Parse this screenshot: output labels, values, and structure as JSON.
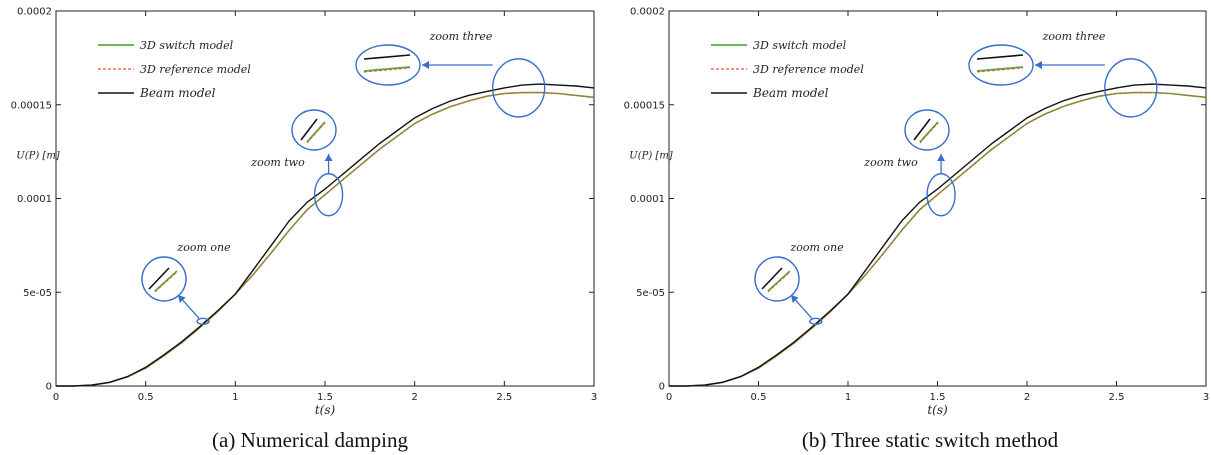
{
  "captions": [
    "(a) Numerical damping",
    "(b) Three static switch method"
  ],
  "chart_data": [
    {
      "type": "line",
      "title": "",
      "xlabel": "t(s)",
      "ylabel": "U(P) [m]",
      "xlim": [
        0,
        3
      ],
      "ylim": [
        0,
        0.0002
      ],
      "xticks": [
        "0",
        "0.5",
        "1",
        "1.5",
        "2",
        "2.5",
        "3"
      ],
      "yticks": [
        "0",
        "5e-05",
        "0.0001",
        "0.00015",
        "0.0002"
      ],
      "grid": false,
      "legend_position": "top-left",
      "x": [
        0,
        0.1,
        0.2,
        0.3,
        0.4,
        0.5,
        0.6,
        0.7,
        0.8,
        0.9,
        1.0,
        1.1,
        1.2,
        1.3,
        1.4,
        1.5,
        1.6,
        1.7,
        1.8,
        1.9,
        2.0,
        2.1,
        2.2,
        2.3,
        2.4,
        2.5,
        2.6,
        2.7,
        2.8,
        2.9,
        3.0
      ],
      "series": [
        {
          "name": "3D switch model",
          "color": "#5aab3c",
          "values": [
            0,
            0,
            5e-07,
            2e-06,
            5e-06,
            9.5e-06,
            1.6e-05,
            2.3e-05,
            3.1e-05,
            3.95e-05,
            4.9e-05,
            5.95e-05,
            7.1e-05,
            8.3e-05,
            9.4e-05,
            0.000102,
            0.00011,
            0.000118,
            0.000126,
            0.000133,
            0.00014,
            0.000145,
            0.000149,
            0.000152,
            0.0001545,
            0.000156,
            0.0001565,
            0.0001565,
            0.000156,
            0.000155,
            0.000154
          ]
        },
        {
          "name": "3D reference model",
          "color": "#e8503a",
          "values": [
            0,
            0,
            5e-07,
            2e-06,
            5e-06,
            9.5e-06,
            1.6e-05,
            2.3e-05,
            3.1e-05,
            3.95e-05,
            4.9e-05,
            5.95e-05,
            7.1e-05,
            8.3e-05,
            9.4e-05,
            0.000102,
            0.00011,
            0.000118,
            0.000126,
            0.000133,
            0.00014,
            0.000145,
            0.000149,
            0.000152,
            0.0001545,
            0.000156,
            0.0001565,
            0.0001565,
            0.000156,
            0.000155,
            0.000154
          ]
        },
        {
          "name": "Beam model",
          "color": "#111111",
          "values": [
            0,
            0,
            5e-07,
            2e-06,
            5e-06,
            1e-05,
            1.65e-05,
            2.35e-05,
            3.15e-05,
            4e-05,
            4.9e-05,
            6.2e-05,
            7.5e-05,
            8.8e-05,
            9.8e-05,
            0.000105,
            0.000113,
            0.000121,
            0.000129,
            0.000136,
            0.000143,
            0.000148,
            0.000152,
            0.000155,
            0.000157,
            0.000159,
            0.0001605,
            0.000161,
            0.0001605,
            0.00016,
            0.000159
          ]
        }
      ],
      "annotations": [
        "zoom one",
        "zoom two",
        "zoom three"
      ]
    },
    {
      "type": "line",
      "title": "",
      "xlabel": "t(s)",
      "ylabel": "U(P) [m]",
      "xlim": [
        0,
        3
      ],
      "ylim": [
        0,
        0.0002
      ],
      "xticks": [
        "0",
        "0.5",
        "1",
        "1.5",
        "2",
        "2.5",
        "3"
      ],
      "yticks": [
        "0",
        "5e-05",
        "0.0001",
        "0.00015",
        "0.0002"
      ],
      "grid": false,
      "legend_position": "top-left",
      "x": [
        0,
        0.1,
        0.2,
        0.3,
        0.4,
        0.5,
        0.6,
        0.7,
        0.8,
        0.9,
        1.0,
        1.1,
        1.2,
        1.3,
        1.4,
        1.5,
        1.6,
        1.7,
        1.8,
        1.9,
        2.0,
        2.1,
        2.2,
        2.3,
        2.4,
        2.5,
        2.6,
        2.7,
        2.8,
        2.9,
        3.0
      ],
      "series": [
        {
          "name": "3D switch model",
          "color": "#5aab3c",
          "values": [
            0,
            0,
            5e-07,
            2e-06,
            5e-06,
            9.5e-06,
            1.6e-05,
            2.3e-05,
            3.1e-05,
            3.95e-05,
            4.9e-05,
            5.95e-05,
            7.1e-05,
            8.3e-05,
            9.4e-05,
            0.000102,
            0.00011,
            0.000118,
            0.000126,
            0.000133,
            0.00014,
            0.000145,
            0.000149,
            0.000152,
            0.0001545,
            0.000156,
            0.0001565,
            0.0001565,
            0.000156,
            0.000155,
            0.000154
          ]
        },
        {
          "name": "3D reference model",
          "color": "#e8503a",
          "values": [
            0,
            0,
            5e-07,
            2e-06,
            5e-06,
            9.5e-06,
            1.6e-05,
            2.3e-05,
            3.1e-05,
            3.95e-05,
            4.9e-05,
            5.95e-05,
            7.1e-05,
            8.3e-05,
            9.4e-05,
            0.000102,
            0.00011,
            0.000118,
            0.000126,
            0.000133,
            0.00014,
            0.000145,
            0.000149,
            0.000152,
            0.0001545,
            0.000156,
            0.0001565,
            0.0001565,
            0.000156,
            0.000155,
            0.000154
          ]
        },
        {
          "name": "Beam model",
          "color": "#111111",
          "values": [
            0,
            0,
            5e-07,
            2e-06,
            5e-06,
            1e-05,
            1.65e-05,
            2.35e-05,
            3.15e-05,
            4e-05,
            4.9e-05,
            6.2e-05,
            7.5e-05,
            8.8e-05,
            9.8e-05,
            0.000105,
            0.000113,
            0.000121,
            0.000129,
            0.000136,
            0.000143,
            0.000148,
            0.000152,
            0.000155,
            0.000157,
            0.000159,
            0.0001605,
            0.000161,
            0.0001605,
            0.00016,
            0.000159
          ]
        }
      ],
      "annotations": [
        "zoom one",
        "zoom two",
        "zoom three"
      ]
    }
  ]
}
